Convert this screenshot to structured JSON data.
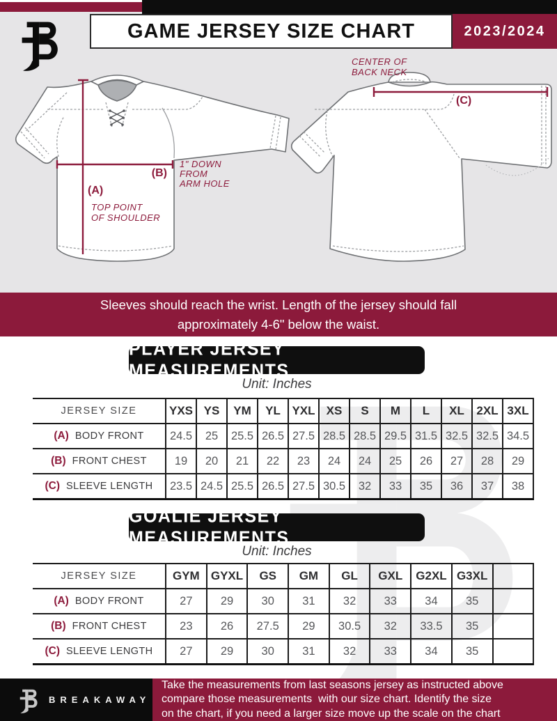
{
  "header": {
    "title": "GAME JERSEY SIZE CHART",
    "season": "2023/2024"
  },
  "diagram": {
    "front": {
      "a_key": "(A)",
      "a_caption": [
        "TOP POINT",
        "OF SHOULDER"
      ],
      "b_key": "(B)",
      "b_caption": [
        "1\" DOWN",
        "FROM",
        "ARM HOLE"
      ]
    },
    "back": {
      "c_key": "(C)",
      "caption": [
        "CENTER OF",
        "BACK NECK"
      ]
    }
  },
  "banner": {
    "lines": [
      "Sleeves should reach the wrist. Length of the jersey should fall",
      "approximately 4-6\" below the waist."
    ]
  },
  "player_table": {
    "title": "PLAYER JERSEY MEASUREMENTS",
    "unit": "Unit: Inches",
    "corner": "JERSEY SIZE",
    "columns": [
      "YXS",
      "YS",
      "YM",
      "YL",
      "YXL",
      "XS",
      "S",
      "M",
      "L",
      "XL",
      "2XL",
      "3XL"
    ],
    "rows": [
      {
        "key": "(A)",
        "label": "BODY FRONT",
        "values": [
          "24.5",
          "25",
          "25.5",
          "26.5",
          "27.5",
          "28.5",
          "28.5",
          "29.5",
          "31.5",
          "32.5",
          "32.5",
          "34.5"
        ]
      },
      {
        "key": "(B)",
        "label": "FRONT CHEST",
        "values": [
          "19",
          "20",
          "21",
          "22",
          "23",
          "24",
          "24",
          "25",
          "26",
          "27",
          "28",
          "29"
        ]
      },
      {
        "key": "(C)",
        "label": "SLEEVE LENGTH",
        "values": [
          "23.5",
          "24.5",
          "25.5",
          "26.5",
          "27.5",
          "30.5",
          "32",
          "33",
          "35",
          "36",
          "37",
          "38"
        ]
      }
    ]
  },
  "goalie_table": {
    "title": "GOALIE JERSEY MEASUREMENTS",
    "unit": "Unit: Inches",
    "corner": "JERSEY SIZE",
    "columns": [
      "GYM",
      "GYXL",
      "GS",
      "GM",
      "GL",
      "GXL",
      "G2XL",
      "G3XL",
      ""
    ],
    "rows": [
      {
        "key": "(A)",
        "label": "BODY FRONT",
        "values": [
          "27",
          "29",
          "30",
          "31",
          "32",
          "33",
          "34",
          "35",
          ""
        ]
      },
      {
        "key": "(B)",
        "label": "FRONT CHEST",
        "values": [
          "23",
          "26",
          "27.5",
          "29",
          "30.5",
          "32",
          "33.5",
          "35",
          ""
        ]
      },
      {
        "key": "(C)",
        "label": "SLEEVE LENGTH",
        "values": [
          "27",
          "29",
          "30",
          "31",
          "32",
          "33",
          "34",
          "35",
          ""
        ]
      }
    ]
  },
  "footer": {
    "brand": "BREAKAWAY",
    "lines": [
      "Take the measurements from last seasons jersey as instructed above",
      "compare those measurements  with our size chart. Identify the size",
      "on the chart, if you need a larger size move up the scale on the chart"
    ]
  },
  "colors": {
    "maroon": "#8C1A3B",
    "black": "#0D0D0D",
    "gray_band": "#E6E5E7",
    "table_text": "#56575A",
    "jersey_outline": "#6E7073"
  }
}
